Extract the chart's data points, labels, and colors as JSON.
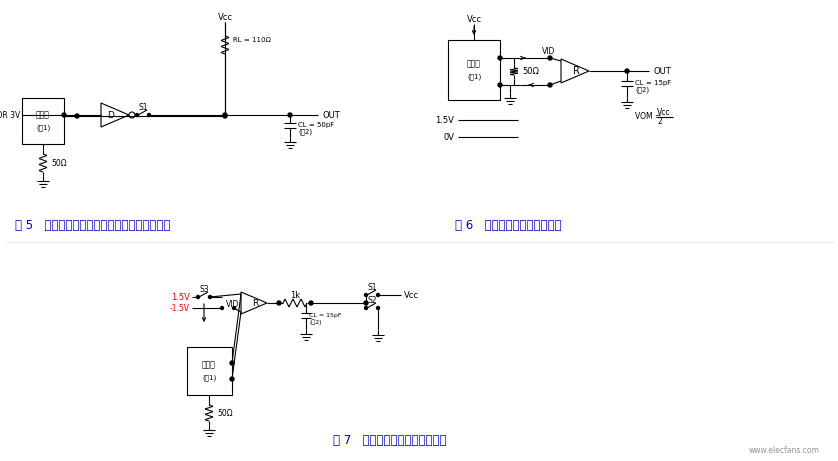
{
  "background_color": "#ffffff",
  "fig5_caption": "图 5   驱动器使能和禁能时序电路，输出低电平",
  "fig6_caption": "图 6   接收器传输延时测试电路",
  "fig7_caption": "图 7   接收器使能和禁能时序电路",
  "caption_color": "#0000cc",
  "line_color": "#000000",
  "watermark": "www.elecfans.com",
  "logo_color": "#cc2200"
}
